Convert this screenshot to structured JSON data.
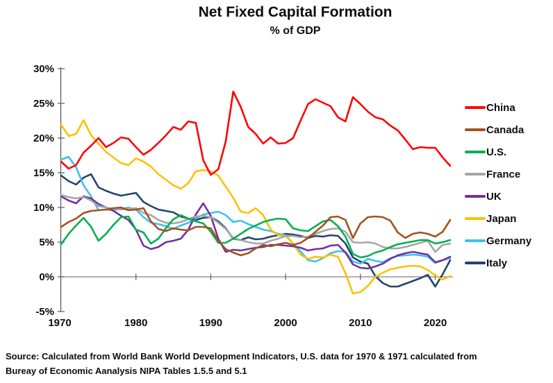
{
  "source_line1": "Source:  Calculated from World Bank World Development Indicators, U.S. data for 1970 & 1971 calculated from",
  "source_line2": "Bureay of Economic Aanalysis NIPA Tables 1.5.5 and 5.1",
  "chart_data": {
    "type": "line",
    "title": "Net Fixed Capital Formation",
    "subtitle": "% of GDP",
    "xlabel": "",
    "ylabel": "",
    "x_start": 1970,
    "x_end": 2022,
    "xlim": [
      1970,
      2023.5
    ],
    "ylim": [
      -5,
      30
    ],
    "grid": "zero-line-only",
    "legend_position": "right",
    "axis_color": "#595959",
    "zero_line_color": "#808080",
    "text_color": "#0d0d0d",
    "x_ticks": [
      {
        "year": 1970,
        "label": "1970"
      },
      {
        "year": 1980,
        "label": "1980"
      },
      {
        "year": 1990,
        "label": "1990"
      },
      {
        "year": 2000,
        "label": "2000"
      },
      {
        "year": 2010,
        "label": "2010"
      },
      {
        "year": 2020,
        "label": "2020"
      }
    ],
    "y_ticks": [
      {
        "value": 30,
        "label": "30%"
      },
      {
        "value": 25,
        "label": "25%"
      },
      {
        "value": 20,
        "label": "20%"
      },
      {
        "value": 15,
        "label": "15%"
      },
      {
        "value": 10,
        "label": "10%"
      },
      {
        "value": 5,
        "label": "5%"
      },
      {
        "value": 0,
        "label": "0%"
      },
      {
        "value": -5,
        "label": "-5%"
      }
    ],
    "series": [
      {
        "name": "China",
        "color": "#FF0000",
        "values": [
          16.6,
          15.6,
          16.1,
          17.9,
          18.9,
          20.0,
          18.7,
          19.3,
          20.1,
          19.9,
          18.7,
          17.6,
          18.3,
          19.3,
          20.4,
          21.6,
          21.2,
          22.4,
          22.2,
          16.8,
          14.7,
          15.5,
          19.5,
          26.7,
          24.5,
          21.6,
          20.6,
          19.2,
          20.1,
          19.2,
          19.3,
          20.0,
          22.5,
          24.9,
          25.6,
          25.1,
          24.6,
          23.0,
          22.4,
          25.9,
          24.9,
          23.8,
          23.0,
          22.7,
          21.8,
          21.1,
          19.8,
          18.4,
          18.7,
          18.6,
          18.6,
          17.2,
          16.0
        ]
      },
      {
        "name": "Canada",
        "color": "#A5511C",
        "values": [
          7.2,
          7.9,
          8.4,
          9.2,
          9.5,
          9.6,
          9.7,
          9.9,
          10.0,
          9.6,
          9.7,
          9.9,
          8.0,
          6.9,
          6.6,
          7.0,
          6.8,
          6.7,
          7.2,
          7.2,
          7.0,
          5.2,
          4.0,
          3.5,
          3.1,
          3.4,
          4.1,
          4.6,
          4.4,
          4.7,
          4.9,
          4.6,
          4.9,
          5.6,
          6.5,
          7.4,
          8.6,
          8.7,
          8.2,
          5.6,
          7.7,
          8.6,
          8.7,
          8.6,
          8.1,
          6.4,
          5.6,
          6.2,
          6.4,
          6.2,
          5.8,
          6.5,
          8.2
        ]
      },
      {
        "name": "U.S.",
        "color": "#00B050",
        "values": [
          4.7,
          6.2,
          7.4,
          8.5,
          7.2,
          5.2,
          6.2,
          7.5,
          8.6,
          8.7,
          6.8,
          6.4,
          4.8,
          5.5,
          7.0,
          8.3,
          8.9,
          8.4,
          8.0,
          7.7,
          6.5,
          4.9,
          4.9,
          5.5,
          6.2,
          6.9,
          7.4,
          7.9,
          8.2,
          8.4,
          8.3,
          7.0,
          6.7,
          6.6,
          7.3,
          8.0,
          8.2,
          7.3,
          5.8,
          3.3,
          2.8,
          3.0,
          3.5,
          3.8,
          4.3,
          4.7,
          4.9,
          5.1,
          5.3,
          5.3,
          4.8,
          5.0,
          5.3
        ]
      },
      {
        "name": "France",
        "color": "#A6A6A6",
        "values": [
          11.8,
          11.5,
          11.3,
          11.5,
          11.0,
          10.2,
          10.0,
          9.8,
          9.7,
          9.8,
          9.9,
          9.2,
          8.9,
          8.2,
          7.8,
          7.7,
          7.9,
          8.3,
          8.7,
          8.8,
          8.6,
          7.8,
          6.9,
          5.6,
          5.3,
          5.0,
          4.8,
          4.8,
          5.2,
          5.5,
          5.9,
          5.9,
          5.7,
          5.8,
          6.2,
          6.6,
          6.9,
          7.0,
          6.5,
          5.0,
          4.9,
          5.0,
          4.8,
          4.3,
          4.1,
          4.1,
          4.3,
          4.6,
          4.9,
          5.2,
          3.6,
          4.6,
          4.8
        ]
      },
      {
        "name": "UK",
        "color": "#7030A0",
        "values": [
          11.6,
          11.0,
          10.6,
          11.6,
          11.3,
          10.5,
          10.0,
          9.5,
          8.8,
          8.2,
          6.8,
          4.5,
          4.0,
          4.3,
          5.0,
          5.2,
          5.5,
          6.8,
          9.0,
          10.6,
          8.8,
          5.5,
          3.6,
          3.9,
          3.8,
          4.0,
          4.2,
          4.3,
          4.6,
          4.6,
          4.5,
          4.4,
          4.2,
          3.8,
          4.0,
          4.1,
          4.5,
          4.6,
          3.5,
          1.8,
          1.3,
          1.2,
          1.5,
          1.9,
          2.6,
          3.1,
          3.4,
          3.6,
          3.4,
          3.2,
          2.1,
          2.4,
          2.9
        ]
      },
      {
        "name": "Japan",
        "color": "#FFC000",
        "values": [
          21.9,
          20.3,
          20.6,
          22.6,
          20.4,
          19.2,
          18.0,
          17.2,
          16.4,
          16.1,
          17.1,
          16.6,
          15.9,
          14.8,
          14.0,
          13.2,
          12.7,
          13.5,
          15.2,
          15.4,
          15.2,
          14.6,
          13.0,
          11.4,
          9.4,
          9.2,
          9.9,
          8.9,
          6.8,
          6.0,
          5.9,
          4.8,
          3.2,
          2.6,
          2.9,
          2.8,
          3.2,
          2.9,
          0.5,
          -2.4,
          -2.2,
          -1.3,
          0.0,
          0.6,
          1.1,
          1.3,
          1.5,
          1.6,
          1.5,
          1.0,
          0.2,
          -0.4,
          0.1
        ]
      },
      {
        "name": "Germany",
        "color": "#3BC0F0",
        "values": [
          16.9,
          17.3,
          15.8,
          13.2,
          11.6,
          9.6,
          9.7,
          9.6,
          9.8,
          10.0,
          9.7,
          8.6,
          7.8,
          7.6,
          7.3,
          6.9,
          7.4,
          7.8,
          8.4,
          9.0,
          9.2,
          9.4,
          8.9,
          7.9,
          8.1,
          7.6,
          7.2,
          6.8,
          6.6,
          6.2,
          6.0,
          4.8,
          3.7,
          2.4,
          2.2,
          2.7,
          3.4,
          3.7,
          3.6,
          2.2,
          1.9,
          2.6,
          2.3,
          2.1,
          2.7,
          3.0,
          3.1,
          3.2,
          3.1,
          2.9,
          2.0,
          2.4,
          2.7
        ]
      },
      {
        "name": "Italy",
        "color": "#234569",
        "values": [
          14.6,
          13.8,
          13.3,
          14.3,
          14.8,
          12.9,
          12.4,
          12.0,
          11.7,
          11.9,
          12.1,
          10.8,
          10.2,
          9.7,
          9.5,
          9.3,
          8.7,
          8.4,
          8.2,
          8.5,
          8.6,
          8.0,
          7.0,
          5.5,
          5.3,
          5.7,
          5.4,
          5.5,
          5.8,
          6.0,
          6.2,
          6.1,
          5.9,
          5.6,
          5.9,
          5.8,
          6.0,
          5.9,
          4.8,
          2.8,
          2.2,
          1.9,
          0.1,
          -0.9,
          -1.4,
          -1.4,
          -1.0,
          -0.6,
          -0.2,
          0.3,
          -1.4,
          0.4,
          2.4
        ]
      }
    ]
  }
}
